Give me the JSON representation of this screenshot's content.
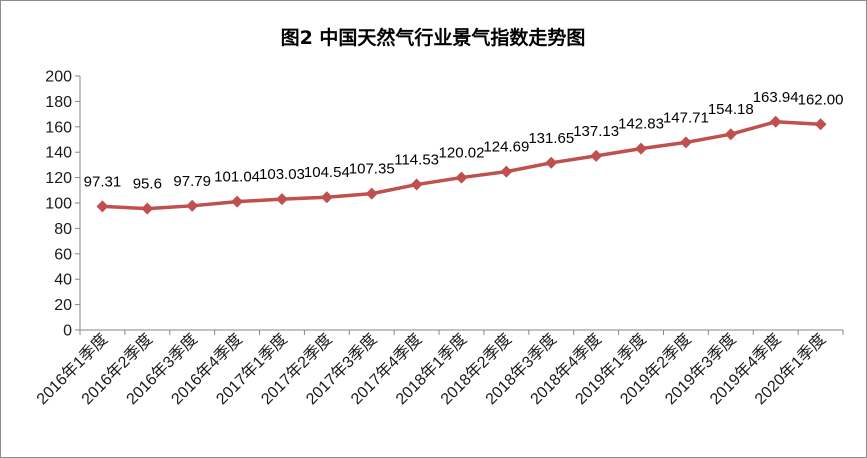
{
  "chart_data": {
    "type": "line",
    "title": "图2  中国天然气行业景气指数走势图",
    "xlabel": "",
    "ylabel": "",
    "categories": [
      "2016年1季度",
      "2016年2季度",
      "2016年3季度",
      "2016年4季度",
      "2017年1季度",
      "2017年2季度",
      "2017年3季度",
      "2017年4季度",
      "2018年1季度",
      "2018年2季度",
      "2018年3季度",
      "2018年4季度",
      "2019年1季度",
      "2019年2季度",
      "2019年3季度",
      "2019年4季度",
      "2020年1季度"
    ],
    "series": [
      {
        "values": [
          97.31,
          95.6,
          97.79,
          101.04,
          103.03,
          104.54,
          107.35,
          114.53,
          120.02,
          124.69,
          131.65,
          137.13,
          142.83,
          147.71,
          154.18,
          163.94,
          162.0
        ],
        "labels": [
          "97.31",
          "95.6",
          "97.79",
          "101.04",
          "103.03",
          "104.54",
          "107.35",
          "114.53",
          "120.02",
          "124.69",
          "131.65",
          "137.13",
          "142.83",
          "147.71",
          "154.18",
          "163.94",
          "162.00"
        ]
      }
    ],
    "ylim": [
      0,
      200
    ],
    "yticks": [
      0,
      20,
      40,
      60,
      80,
      100,
      120,
      140,
      160,
      180,
      200
    ],
    "grid": false,
    "legend": "none",
    "colors": {
      "line": "#c0504d",
      "marker": "#c0504d",
      "axis": "#868686"
    }
  }
}
